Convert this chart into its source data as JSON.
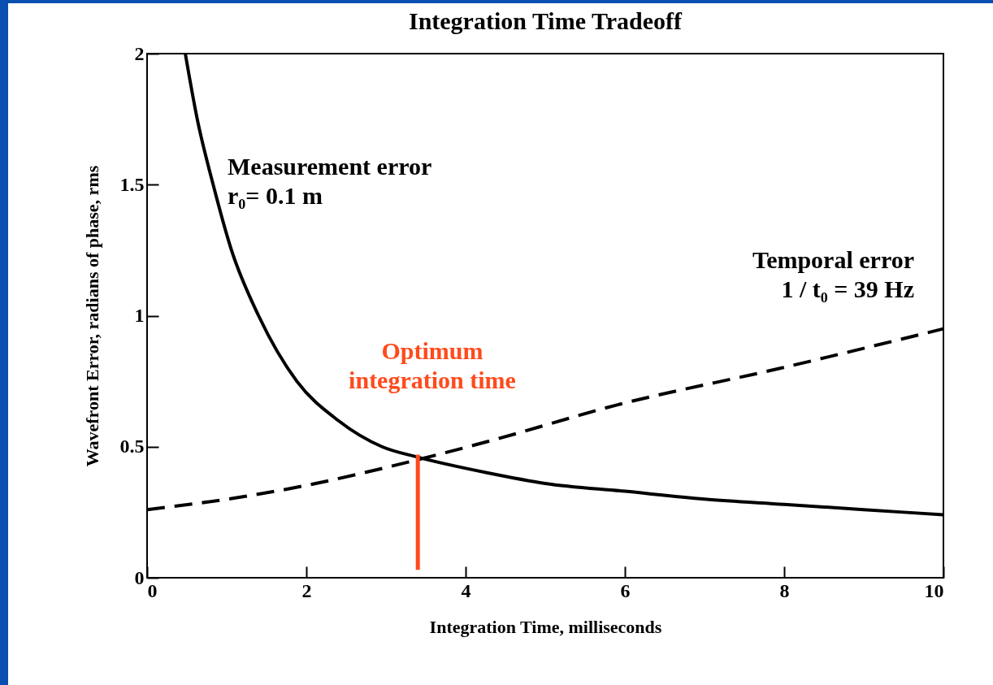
{
  "chart_data": {
    "type": "line",
    "title": "Integration Time Tradeoff",
    "xlabel": "Integration Time, milliseconds",
    "ylabel": "Wavefront Error, radians of phase, rms",
    "xlim": [
      0,
      10
    ],
    "ylim": [
      0,
      2
    ],
    "xticks": [
      0,
      2,
      4,
      6,
      8,
      10
    ],
    "yticks": [
      0,
      0.5,
      1,
      1.5,
      2
    ],
    "grid": false,
    "series": [
      {
        "color": "#000000",
        "line_style": "solid",
        "x": [
          0.48,
          0.63,
          0.83,
          1.06,
          1.4,
          1.88,
          2.4,
          2.95,
          3.4,
          4.28,
          5,
          6,
          7,
          8,
          9,
          10
        ],
        "values": [
          2,
          1.75,
          1.5,
          1.25,
          1,
          0.75,
          0.6,
          0.5,
          0.46,
          0.4,
          0.36,
          0.33,
          0.3,
          0.28,
          0.26,
          0.24
        ]
      },
      {
        "color": "#000000",
        "line_style": "dashed",
        "x": [
          0,
          1.22,
          1.96,
          3.26,
          4.28,
          5.91,
          7.96,
          10
        ],
        "values": [
          0.26,
          0.31,
          0.35,
          0.44,
          0.52,
          0.66,
          0.8,
          0.95
        ]
      },
      {
        "color": "#ff4a1c",
        "line_style": "solid",
        "x": [
          3.4,
          3.4
        ],
        "values": [
          0.03,
          0.47
        ]
      }
    ],
    "annotations": [
      "Measurement error\nr₀= 0.1 m",
      "Temporal error\n1 / t₀ = 39 Hz",
      "Optimum\nintegration time"
    ]
  }
}
